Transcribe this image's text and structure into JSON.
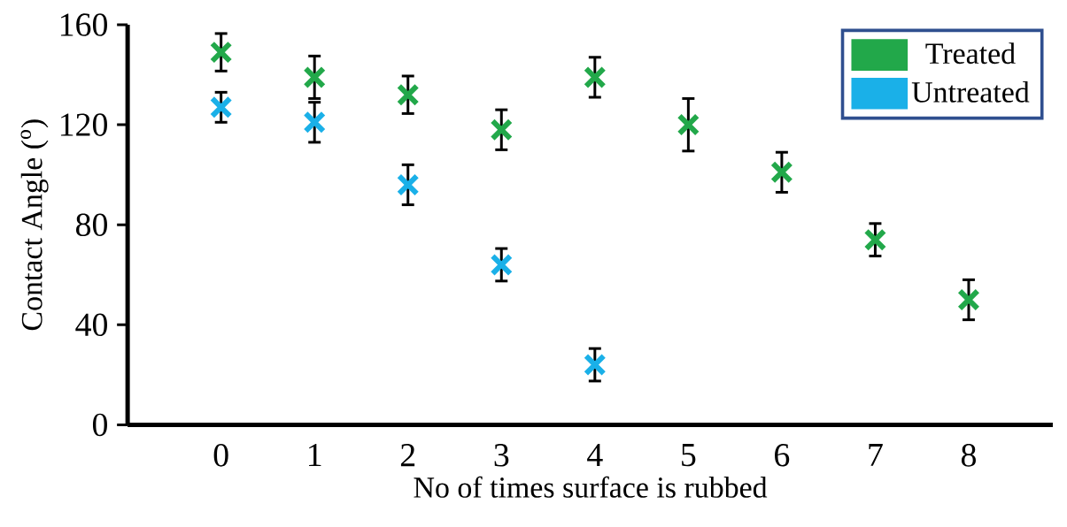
{
  "chart_data": {
    "type": "scatter",
    "xlabel": "No of times surface is rubbed",
    "ylabel": "Contact Angle ($^{o}$)",
    "x": [
      0,
      1,
      2,
      3,
      4,
      5,
      6,
      7,
      8
    ],
    "xlim": [
      -1,
      8.9
    ],
    "ylim": [
      0,
      160
    ],
    "xticks": [
      0,
      1,
      2,
      3,
      4,
      5,
      6,
      7,
      8
    ],
    "yticks": [
      0,
      40,
      80,
      120,
      160
    ],
    "grid": false,
    "legend": "top right",
    "marker": "cross",
    "series": [
      {
        "name": "Treated",
        "color": "#22a84a",
        "values": [
          149,
          139,
          132,
          118,
          139,
          120,
          101,
          74,
          50
        ],
        "errors": [
          7.5,
          8.5,
          7.5,
          8,
          8,
          10.5,
          8,
          6.5,
          8
        ]
      },
      {
        "name": "Untreated",
        "color": "#1ab0e8",
        "values": [
          127,
          121,
          96,
          64,
          24,
          null,
          null,
          null,
          null
        ],
        "errors": [
          6,
          8,
          8,
          6.5,
          6.5,
          null,
          null,
          null,
          null
        ]
      }
    ]
  }
}
